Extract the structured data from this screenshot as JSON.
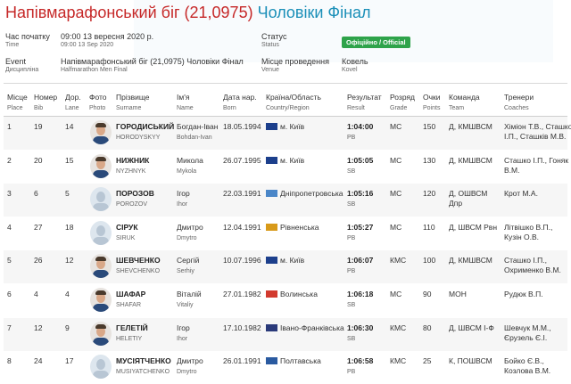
{
  "header": {
    "title_main": "Напівмарафонський біг (21,0975)",
    "title_sub": "Чоловіки Фінал"
  },
  "info": {
    "start_label": "Час початку",
    "start_label_en": "Time",
    "start_value": "09:00 13 вересня 2020 р.",
    "start_value_en": "09:00 13 Sep 2020",
    "status_label": "Статус",
    "status_label_en": "Status",
    "status_badge": "Офіційно / Official",
    "event_label": "Event",
    "event_label_en": "Дисципліна",
    "event_value": "Напівмарафонський біг (21,0975) Чоловіки Фінал",
    "event_value_en": "Halfmarathon Men Final",
    "venue_label": "Місце проведення",
    "venue_label_en": "Venue",
    "venue_value": "Ковель",
    "venue_value_en": "Kovel"
  },
  "columns": {
    "place": [
      "Місце",
      "Place"
    ],
    "bib": [
      "Номер",
      "Bib"
    ],
    "lane": [
      "Дор.",
      "Lane"
    ],
    "photo": [
      "Фото",
      "Photo"
    ],
    "surname": [
      "Прізвище",
      "Surname"
    ],
    "name": [
      "Ім'я",
      "Name"
    ],
    "born": [
      "Дата нар.",
      "Born"
    ],
    "country": [
      "Країна/Область",
      "Country/Region"
    ],
    "result": [
      "Результат",
      "Result"
    ],
    "grade": [
      "Розряд",
      "Grade"
    ],
    "points": [
      "Очки",
      "Points"
    ],
    "team": [
      "Команда",
      "Team"
    ],
    "coaches": [
      "Тренери",
      "Coaches"
    ]
  },
  "rows": [
    {
      "place": "1",
      "bib": "19",
      "lane": "14",
      "surname": "ГОРОДИСЬКИЙ",
      "surname_en": "HORODYSKYY",
      "name": "Богдан-Іван",
      "name_en": "Bohdan-Ivan",
      "born": "18.05.1994",
      "region": "м. Київ",
      "region_color": "#1c3f8c",
      "result": "1:04:00",
      "result_note": "PB",
      "grade": "МС",
      "points": "150",
      "team": "Д, КМШВСМ",
      "coach1": "Хіміон Т.В., Сташко",
      "coach2": "І.П., Сташків М.В.",
      "photo": "man"
    },
    {
      "place": "2",
      "bib": "20",
      "lane": "15",
      "surname": "НИЖНИК",
      "surname_en": "NYZHNYK",
      "name": "Микола",
      "name_en": "Mykola",
      "born": "26.07.1995",
      "region": "м. Київ",
      "region_color": "#1c3f8c",
      "result": "1:05:05",
      "result_note": "SB",
      "grade": "МС",
      "points": "130",
      "team": "Д, КМШВСМ",
      "coach1": "Сташко І.П., Гоняк",
      "coach2": "В.М.",
      "photo": "man"
    },
    {
      "place": "3",
      "bib": "6",
      "lane": "5",
      "surname": "ПОРОЗОВ",
      "surname_en": "POROZOV",
      "name": "Ігор",
      "name_en": "Ihor",
      "born": "22.03.1991",
      "region": "Дніпропетровська",
      "region_color": "#4a86c8",
      "result": "1:05:16",
      "result_note": "SB",
      "grade": "МС",
      "points": "120",
      "team": "Д, ОШВСМ",
      "coach1": "Крот М.А.",
      "coach2": "",
      "team2": "Дпр",
      "photo": "silhouette"
    },
    {
      "place": "4",
      "bib": "27",
      "lane": "18",
      "surname": "СІРУК",
      "surname_en": "SIRUK",
      "name": "Дмитро",
      "name_en": "Dmytro",
      "born": "12.04.1991",
      "region": "Рівненська",
      "region_color": "#d89a1a",
      "result": "1:05:27",
      "result_note": "PB",
      "grade": "МС",
      "points": "110",
      "team": "Д, ШВСМ Рвн",
      "coach1": "Літвішко В.П.,",
      "coach2": "Кузін О.В.",
      "photo": "silhouette"
    },
    {
      "place": "5",
      "bib": "26",
      "lane": "12",
      "surname": "ШЕВЧЕНКО",
      "surname_en": "SHEVCHENKO",
      "name": "Сергій",
      "name_en": "Serhiy",
      "born": "10.07.1996",
      "region": "м. Київ",
      "region_color": "#1c3f8c",
      "result": "1:06:07",
      "result_note": "PB",
      "grade": "КМС",
      "points": "100",
      "team": "Д, КМШВСМ",
      "coach1": "Сташко І.П.,",
      "coach2": "Охрименко В.М.",
      "photo": "man"
    },
    {
      "place": "6",
      "bib": "4",
      "lane": "4",
      "surname": "ШАФАР",
      "surname_en": "SHAFAR",
      "name": "Віталій",
      "name_en": "Vitaliy",
      "born": "27.01.1982",
      "region": "Волинська",
      "region_color": "#d23a2e",
      "result": "1:06:18",
      "result_note": "SB",
      "grade": "МС",
      "points": "90",
      "team": "МОН",
      "coach1": "Рудюк В.П.",
      "coach2": "",
      "photo": "man"
    },
    {
      "place": "7",
      "bib": "12",
      "lane": "9",
      "surname": "ГЕЛЕТІЙ",
      "surname_en": "HELETIY",
      "name": "Ігор",
      "name_en": "Ihor",
      "born": "17.10.1982",
      "region": "Івано-Франківська",
      "region_color": "#2a3a7a",
      "result": "1:06:30",
      "result_note": "SB",
      "grade": "КМС",
      "points": "80",
      "team": "Д, ШВСМ І-Ф",
      "coach1": "Шевчук М.М.,",
      "coach2": "Єрузель Є.І.",
      "photo": "man"
    },
    {
      "place": "8",
      "bib": "24",
      "lane": "17",
      "surname": "МУСІЯТЧЕНКО",
      "surname_en": "MUSIYATCHENKO",
      "name": "Дмитро",
      "name_en": "Dmytro",
      "born": "26.01.1991",
      "region": "Полтавська",
      "region_color": "#2a5aa0",
      "result": "1:06:58",
      "result_note": "PB",
      "grade": "КМС",
      "points": "25",
      "team": "К, ПОШВСМ",
      "coach1": "Бойко Є.В.,",
      "coach2": "Козлова В.М.",
      "photo": "silhouette"
    }
  ]
}
